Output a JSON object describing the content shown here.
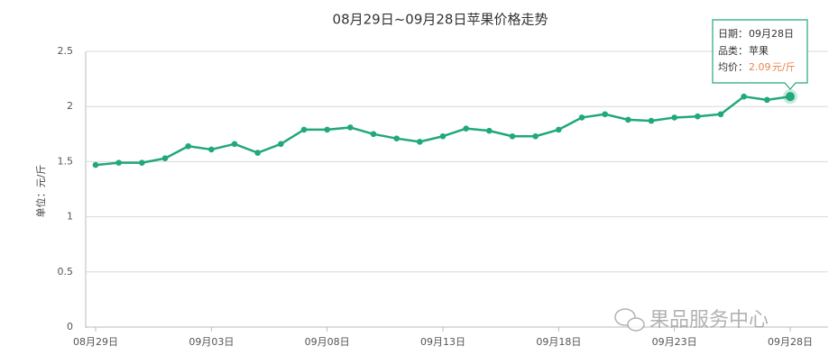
{
  "chart_data": {
    "type": "line",
    "title": "08月29日~09月28日苹果价格走势",
    "y_label": "单位：元/斤",
    "categories": [
      "08月29日",
      null,
      null,
      null,
      null,
      "09月03日",
      null,
      null,
      null,
      null,
      "09月08日",
      null,
      null,
      null,
      null,
      "09月13日",
      null,
      null,
      null,
      null,
      "09月18日",
      null,
      null,
      null,
      null,
      "09月23日",
      null,
      null,
      null,
      null,
      "09月28日"
    ],
    "series": [
      {
        "name": "苹果",
        "color": "#21a87c",
        "values": [
          1.47,
          1.49,
          1.49,
          1.53,
          1.64,
          1.61,
          1.66,
          1.58,
          1.66,
          1.79,
          1.79,
          1.81,
          1.75,
          1.71,
          1.68,
          1.73,
          1.8,
          1.78,
          1.73,
          1.73,
          1.79,
          1.9,
          1.93,
          1.88,
          1.87,
          1.9,
          1.91,
          1.93,
          2.09,
          2.06,
          2.09
        ]
      }
    ],
    "ylim": [
      0,
      2.5
    ],
    "yticks": [
      0,
      0.5,
      1,
      1.5,
      2,
      2.5
    ],
    "grid": true,
    "tooltip": {
      "date_label": "日期：",
      "date": "09月28日",
      "category_label": "品类：",
      "category": "苹果",
      "price_label": "均价：",
      "price": 2.09,
      "unit": "元/斤"
    },
    "watermark": "果品服务中心"
  }
}
